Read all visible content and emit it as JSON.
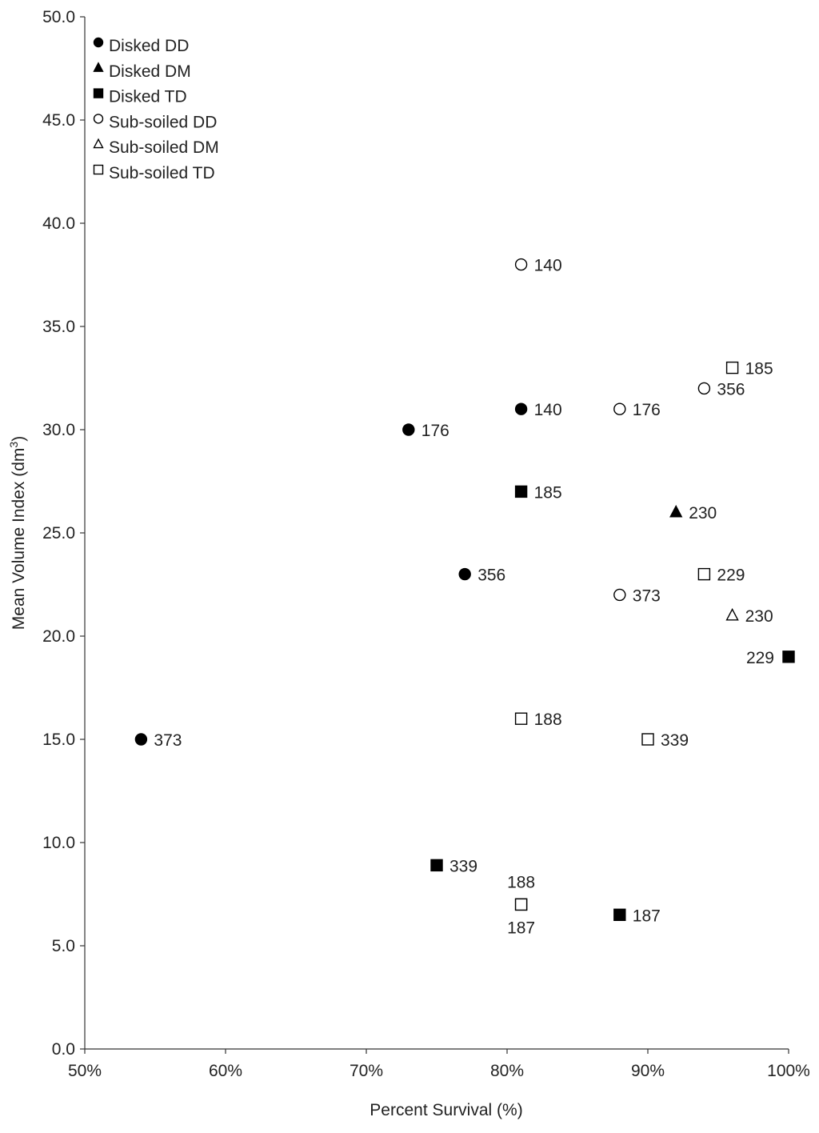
{
  "chart_data": {
    "type": "scatter",
    "title": "",
    "xlabel": "Percent Survival (%)",
    "ylabel": "Mean Volume Index (dm",
    "ylabel_sup": "3",
    "ylabel_close": ")",
    "xlim": [
      50,
      100
    ],
    "ylim": [
      0,
      50
    ],
    "x_ticks": [
      50,
      60,
      70,
      80,
      90,
      100
    ],
    "x_tick_labels": [
      "50%",
      "60%",
      "70%",
      "80%",
      "90%",
      "100%"
    ],
    "y_ticks": [
      0,
      5,
      10,
      15,
      20,
      25,
      30,
      35,
      40,
      45,
      50
    ],
    "y_tick_labels": [
      "0.0",
      "5.0",
      "10.0",
      "15.0",
      "20.0",
      "25.0",
      "30.0",
      "35.0",
      "40.0",
      "45.0",
      "50.0"
    ],
    "grid": false,
    "legend_position": "top-left",
    "series": [
      {
        "name": "Disked DD",
        "marker": "circle",
        "filled": true,
        "points": [
          {
            "x": 54,
            "y": 15,
            "label": "373"
          },
          {
            "x": 73,
            "y": 30,
            "label": "176"
          },
          {
            "x": 77,
            "y": 23,
            "label": "356"
          },
          {
            "x": 81,
            "y": 31,
            "label": "140"
          }
        ]
      },
      {
        "name": "Disked DM",
        "marker": "triangle",
        "filled": true,
        "points": [
          {
            "x": 92,
            "y": 26,
            "label": "230"
          }
        ]
      },
      {
        "name": "Disked TD",
        "marker": "square",
        "filled": true,
        "points": [
          {
            "x": 75,
            "y": 8.9,
            "label": "339"
          },
          {
            "x": 81,
            "y": 27,
            "label": "185"
          },
          {
            "x": 81,
            "y": 7,
            "label": "187"
          },
          {
            "x": 88,
            "y": 6.5,
            "label": "187"
          },
          {
            "x": 100,
            "y": 19,
            "label": "229"
          }
        ]
      },
      {
        "name": "Sub-soiled DD",
        "marker": "circle",
        "filled": false,
        "points": [
          {
            "x": 81,
            "y": 38,
            "label": "140"
          },
          {
            "x": 88,
            "y": 31,
            "label": "176"
          },
          {
            "x": 94,
            "y": 32,
            "label": "356"
          },
          {
            "x": 88,
            "y": 22,
            "label": "373"
          }
        ]
      },
      {
        "name": "Sub-soiled DM",
        "marker": "triangle",
        "filled": false,
        "points": [
          {
            "x": 96,
            "y": 21,
            "label": "230"
          }
        ]
      },
      {
        "name": "Sub-soiled TD",
        "marker": "square",
        "filled": false,
        "points": [
          {
            "x": 96,
            "y": 33,
            "label": "185"
          },
          {
            "x": 94,
            "y": 23,
            "label": "229"
          },
          {
            "x": 81,
            "y": 16,
            "label": "188"
          },
          {
            "x": 90,
            "y": 15,
            "label": "339"
          },
          {
            "x": 81,
            "y": 7,
            "label": "188"
          }
        ]
      }
    ]
  }
}
